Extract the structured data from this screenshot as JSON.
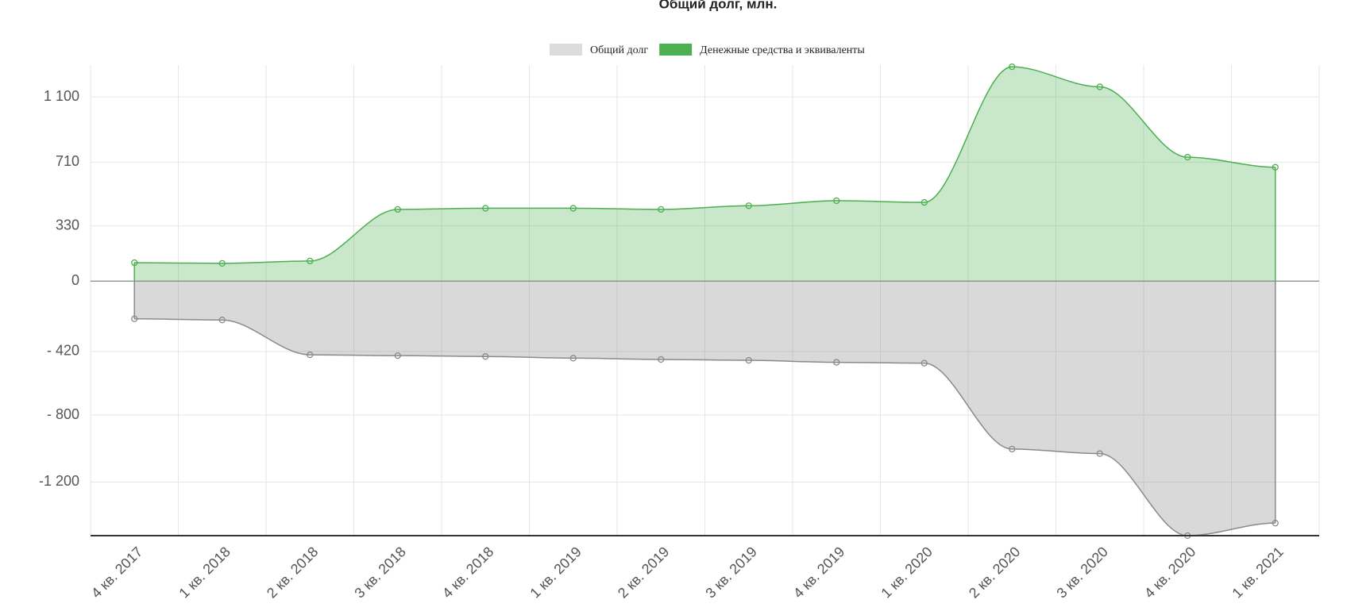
{
  "chart_data": {
    "type": "area",
    "title": "Общий долг, млн.",
    "categories": [
      "4 кв. 2017",
      "1 кв. 2018",
      "2 кв. 2018",
      "3 кв. 2018",
      "4 кв. 2018",
      "1 кв. 2019",
      "2 кв. 2019",
      "3 кв. 2019",
      "4 кв. 2019",
      "1 кв. 2020",
      "2 кв. 2020",
      "3 кв. 2020",
      "4 кв. 2020",
      "1 кв. 2021"
    ],
    "series": [
      {
        "name": "Общий долг",
        "color": "#8a8a8a",
        "values": [
          -225,
          -232,
          -440,
          -445,
          -450,
          -460,
          -468,
          -473,
          -485,
          -490,
          -1003,
          -1030,
          -1520,
          -1445
        ]
      },
      {
        "name": "Денежные средства и эквиваленты",
        "color": "#4caf50",
        "values": [
          110,
          106,
          120,
          428,
          435,
          435,
          428,
          450,
          480,
          470,
          1280,
          1160,
          740,
          680
        ]
      }
    ],
    "ylim": [
      -1520,
      1290
    ],
    "yticks": [
      {
        "value": -1200,
        "label": "-1 200"
      },
      {
        "value": -800,
        "label": "- 800"
      },
      {
        "value": -420,
        "label": "- 420"
      },
      0,
      330,
      710,
      {
        "value": 1100,
        "label": "1 100"
      }
    ],
    "grid": true
  }
}
